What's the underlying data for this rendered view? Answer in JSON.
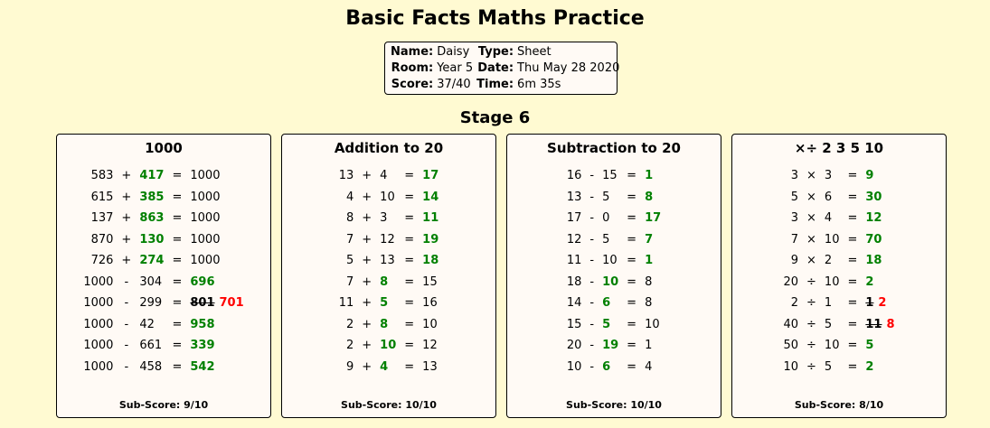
{
  "title": "Basic Facts Maths Practice",
  "info": {
    "name_label": "Name:",
    "name": "Daisy",
    "type_label": "Type:",
    "type": "Sheet",
    "room_label": "Room:",
    "room": "Year 5",
    "date_label": "Date:",
    "date": "Thu May 28 2020",
    "score_label": "Score:",
    "score": "37/40",
    "time_label": "Time:",
    "time": "6m 35s"
  },
  "stage": "Stage 6",
  "colors": {
    "background": "#fffad2",
    "correct": "#008000",
    "wrong": "#ff0000"
  },
  "panels": [
    {
      "title": "1000",
      "subscore": "Sub-Score: 9/10",
      "rows": [
        {
          "a": "583",
          "op": "+",
          "b": "417",
          "c": "1000",
          "ans": "b"
        },
        {
          "a": "615",
          "op": "+",
          "b": "385",
          "c": "1000",
          "ans": "b"
        },
        {
          "a": "137",
          "op": "+",
          "b": "863",
          "c": "1000",
          "ans": "b"
        },
        {
          "a": "870",
          "op": "+",
          "b": "130",
          "c": "1000",
          "ans": "b"
        },
        {
          "a": "726",
          "op": "+",
          "b": "274",
          "c": "1000",
          "ans": "b"
        },
        {
          "a": "1000",
          "op": "-",
          "b": "304",
          "c": "696",
          "ans": "c"
        },
        {
          "a": "1000",
          "op": "-",
          "b": "299",
          "c": "701",
          "ans": "c",
          "wrong": "801"
        },
        {
          "a": "1000",
          "op": "-",
          "b": "42",
          "c": "958",
          "ans": "c"
        },
        {
          "a": "1000",
          "op": "-",
          "b": "661",
          "c": "339",
          "ans": "c"
        },
        {
          "a": "1000",
          "op": "-",
          "b": "458",
          "c": "542",
          "ans": "c"
        }
      ]
    },
    {
      "title": "Addition to 20",
      "subscore": "Sub-Score: 10/10",
      "rows": [
        {
          "a": "13",
          "op": "+",
          "b": "4",
          "c": "17",
          "ans": "c"
        },
        {
          "a": "4",
          "op": "+",
          "b": "10",
          "c": "14",
          "ans": "c"
        },
        {
          "a": "8",
          "op": "+",
          "b": "3",
          "c": "11",
          "ans": "c"
        },
        {
          "a": "7",
          "op": "+",
          "b": "12",
          "c": "19",
          "ans": "c"
        },
        {
          "a": "5",
          "op": "+",
          "b": "13",
          "c": "18",
          "ans": "c"
        },
        {
          "a": "7",
          "op": "+",
          "b": "8",
          "c": "15",
          "ans": "b"
        },
        {
          "a": "11",
          "op": "+",
          "b": "5",
          "c": "16",
          "ans": "b"
        },
        {
          "a": "2",
          "op": "+",
          "b": "8",
          "c": "10",
          "ans": "b"
        },
        {
          "a": "2",
          "op": "+",
          "b": "10",
          "c": "12",
          "ans": "b"
        },
        {
          "a": "9",
          "op": "+",
          "b": "4",
          "c": "13",
          "ans": "b"
        }
      ]
    },
    {
      "title": "Subtraction to 20",
      "subscore": "Sub-Score: 10/10",
      "rows": [
        {
          "a": "16",
          "op": "-",
          "b": "15",
          "c": "1",
          "ans": "c"
        },
        {
          "a": "13",
          "op": "-",
          "b": "5",
          "c": "8",
          "ans": "c"
        },
        {
          "a": "17",
          "op": "-",
          "b": "0",
          "c": "17",
          "ans": "c"
        },
        {
          "a": "12",
          "op": "-",
          "b": "5",
          "c": "7",
          "ans": "c"
        },
        {
          "a": "11",
          "op": "-",
          "b": "10",
          "c": "1",
          "ans": "c"
        },
        {
          "a": "18",
          "op": "-",
          "b": "10",
          "c": "8",
          "ans": "b"
        },
        {
          "a": "14",
          "op": "-",
          "b": "6",
          "c": "8",
          "ans": "b"
        },
        {
          "a": "15",
          "op": "-",
          "b": "5",
          "c": "10",
          "ans": "b"
        },
        {
          "a": "20",
          "op": "-",
          "b": "19",
          "c": "1",
          "ans": "b"
        },
        {
          "a": "10",
          "op": "-",
          "b": "6",
          "c": "4",
          "ans": "b"
        }
      ]
    },
    {
      "title": "×÷ 2 3 5 10",
      "subscore": "Sub-Score: 8/10",
      "rows": [
        {
          "a": "3",
          "op": "×",
          "b": "3",
          "c": "9",
          "ans": "c"
        },
        {
          "a": "5",
          "op": "×",
          "b": "6",
          "c": "30",
          "ans": "c"
        },
        {
          "a": "3",
          "op": "×",
          "b": "4",
          "c": "12",
          "ans": "c"
        },
        {
          "a": "7",
          "op": "×",
          "b": "10",
          "c": "70",
          "ans": "c"
        },
        {
          "a": "9",
          "op": "×",
          "b": "2",
          "c": "18",
          "ans": "c"
        },
        {
          "a": "20",
          "op": "÷",
          "b": "10",
          "c": "2",
          "ans": "c"
        },
        {
          "a": "2",
          "op": "÷",
          "b": "1",
          "c": "2",
          "ans": "c",
          "wrong": "1"
        },
        {
          "a": "40",
          "op": "÷",
          "b": "5",
          "c": "8",
          "ans": "c",
          "wrong": "11"
        },
        {
          "a": "50",
          "op": "÷",
          "b": "10",
          "c": "5",
          "ans": "c"
        },
        {
          "a": "10",
          "op": "÷",
          "b": "5",
          "c": "2",
          "ans": "c"
        }
      ]
    }
  ]
}
